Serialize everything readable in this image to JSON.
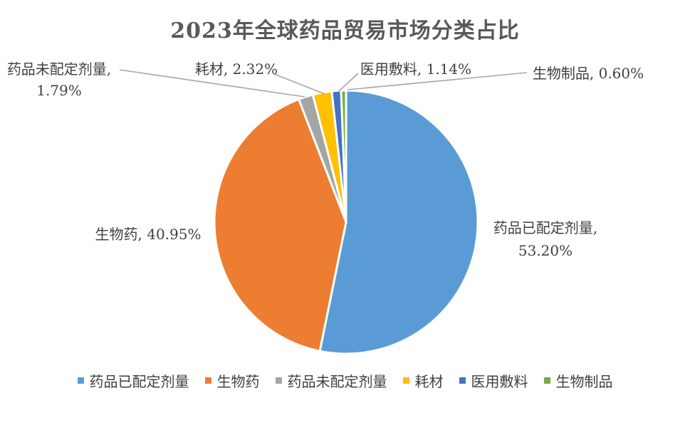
{
  "chart_data": {
    "type": "pie",
    "title": "2023年全球药品贸易市场分类占比",
    "categories": [
      "药品已配定剂量",
      "生物药",
      "药品未配定剂量",
      "耗材",
      "医用敷料",
      "生物制品"
    ],
    "values": [
      53.2,
      40.95,
      1.79,
      2.32,
      1.14,
      0.6
    ],
    "labels": [
      [
        "药品已配定剂量,",
        "53.20%"
      ],
      [
        "生物药, 40.95%"
      ],
      [
        "药品未配定剂量,",
        "1.79%"
      ],
      [
        "耗材, 2.32%"
      ],
      [
        "医用敷料, 1.14%"
      ],
      [
        "生物制品, 0.60%"
      ]
    ],
    "colors": [
      "#5B9BD5",
      "#ED7D31",
      "#A5A5A5",
      "#FFC000",
      "#4472C4",
      "#70AD47"
    ],
    "legend_position": "bottom"
  }
}
